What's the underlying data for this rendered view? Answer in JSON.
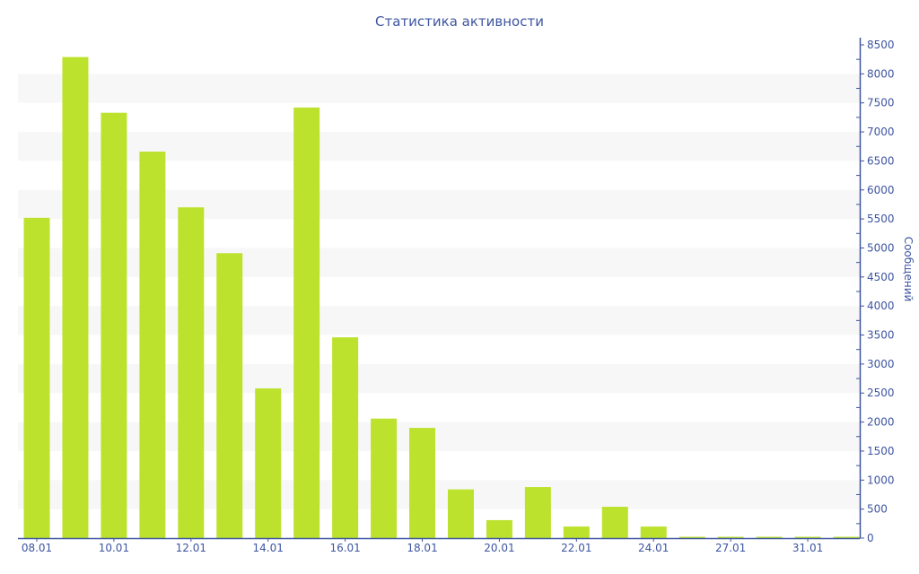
{
  "chart_data": {
    "type": "bar",
    "title": "Статистика активности",
    "ylabel": "Сообщений",
    "xlabel": "",
    "y_axis_side": "right",
    "ylim": [
      0,
      8500
    ],
    "yticks": [
      0,
      500,
      1000,
      1500,
      2000,
      2500,
      3000,
      3500,
      4000,
      4500,
      5000,
      5500,
      6000,
      6500,
      7000,
      7500,
      8000,
      8500
    ],
    "grid": "alternating horizontal bands",
    "categories": [
      "08.01",
      "",
      "10.01",
      "",
      "12.01",
      "",
      "14.01",
      "",
      "16.01",
      "",
      "18.01",
      "",
      "20.01",
      "",
      "22.01",
      "",
      "24.01",
      "",
      "27.01",
      "",
      "31.01",
      ""
    ],
    "values": [
      5520,
      8290,
      7330,
      6660,
      5700,
      4910,
      2580,
      7420,
      3460,
      2060,
      1900,
      840,
      310,
      880,
      200,
      540,
      200,
      10,
      10,
      10,
      10,
      10
    ],
    "colors": {
      "bar": "#bde22e",
      "axis": "#3d55a0",
      "band": "#f7f7f7"
    }
  }
}
